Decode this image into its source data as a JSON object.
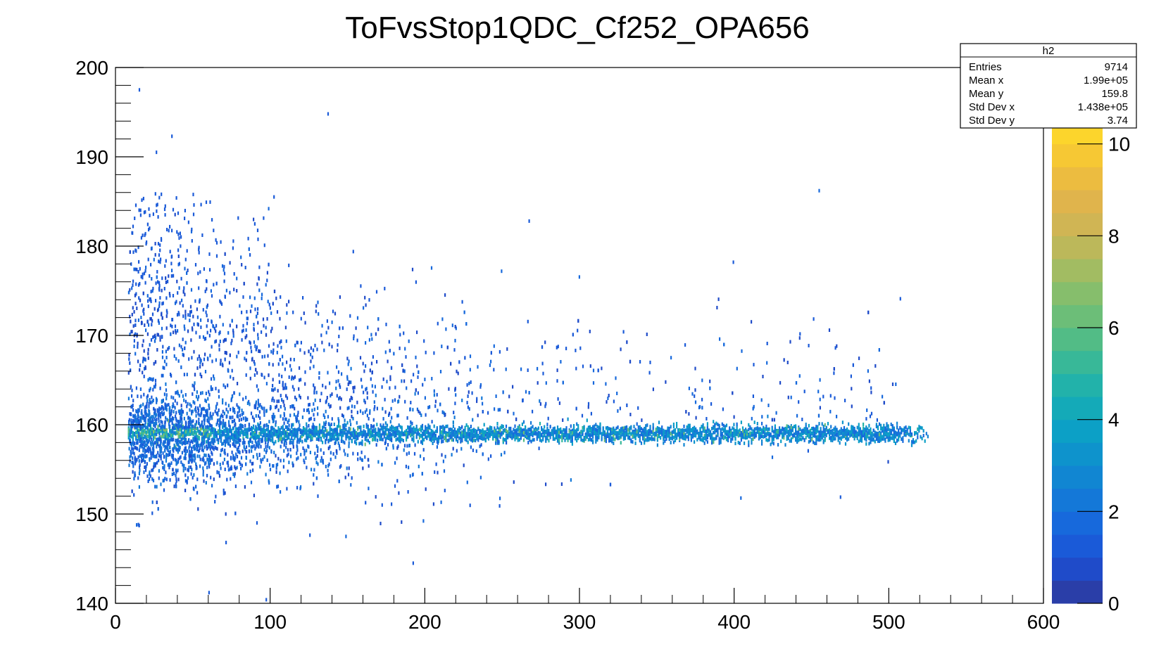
{
  "chart_data": {
    "type": "heatmap",
    "title": "ToFvsStop1QDC_Cf252_OPA656",
    "xlabel": "",
    "ylabel": "",
    "xlim": [
      0,
      600
    ],
    "ylim": [
      140,
      200
    ],
    "x_ticks": [
      "0",
      "100",
      "200",
      "300",
      "400",
      "500",
      "600"
    ],
    "y_ticks": [
      "140",
      "150",
      "160",
      "170",
      "180",
      "190",
      "200"
    ],
    "color_scale": {
      "min": 0,
      "max": 10.5,
      "ticks": [
        "0",
        "2",
        "4",
        "6",
        "8",
        "10"
      ],
      "colors": [
        "#2a3ea8",
        "#1f4bc9",
        "#1a5ad8",
        "#1769dc",
        "#1478d8",
        "#1186d2",
        "#0e93cc",
        "#0ca0c6",
        "#14aab8",
        "#22b2aa",
        "#38b898",
        "#52bc86",
        "#6cbe78",
        "#86be6c",
        "#a2bc62",
        "#bcb85a",
        "#d0b554",
        "#e0b44c",
        "#ecbc40",
        "#f6c834",
        "#fcd52c"
      ]
    },
    "band": {
      "y_center": 159,
      "x_start": 8,
      "x_end": 528,
      "description_values": "dense band near y=159 from x≈8 to x≈528"
    },
    "scatter_sample": [
      [
        15,
        197.5
      ],
      [
        137,
        194.8
      ],
      [
        36,
        192.3
      ],
      [
        26,
        190.5
      ],
      [
        102,
        185.5
      ],
      [
        267,
        182.8
      ],
      [
        399,
        178.2
      ],
      [
        507,
        174.1
      ],
      [
        328,
        170.4
      ],
      [
        465,
        168.6
      ],
      [
        192,
        144.5
      ],
      [
        60,
        141.2
      ],
      [
        97,
        140.4
      ],
      [
        178,
        151.1
      ],
      [
        91,
        149.0
      ],
      [
        71,
        146.8
      ]
    ],
    "stats_box": {
      "name": "h2",
      "rows": [
        {
          "label": "Entries",
          "value": "9714"
        },
        {
          "label": "Mean x",
          "value": "1.99e+05"
        },
        {
          "label": "Mean y",
          "value": "159.8"
        },
        {
          "label": "Std Dev x",
          "value": "1.438e+05"
        },
        {
          "label": "Std Dev y",
          "value": "3.74"
        }
      ]
    }
  }
}
